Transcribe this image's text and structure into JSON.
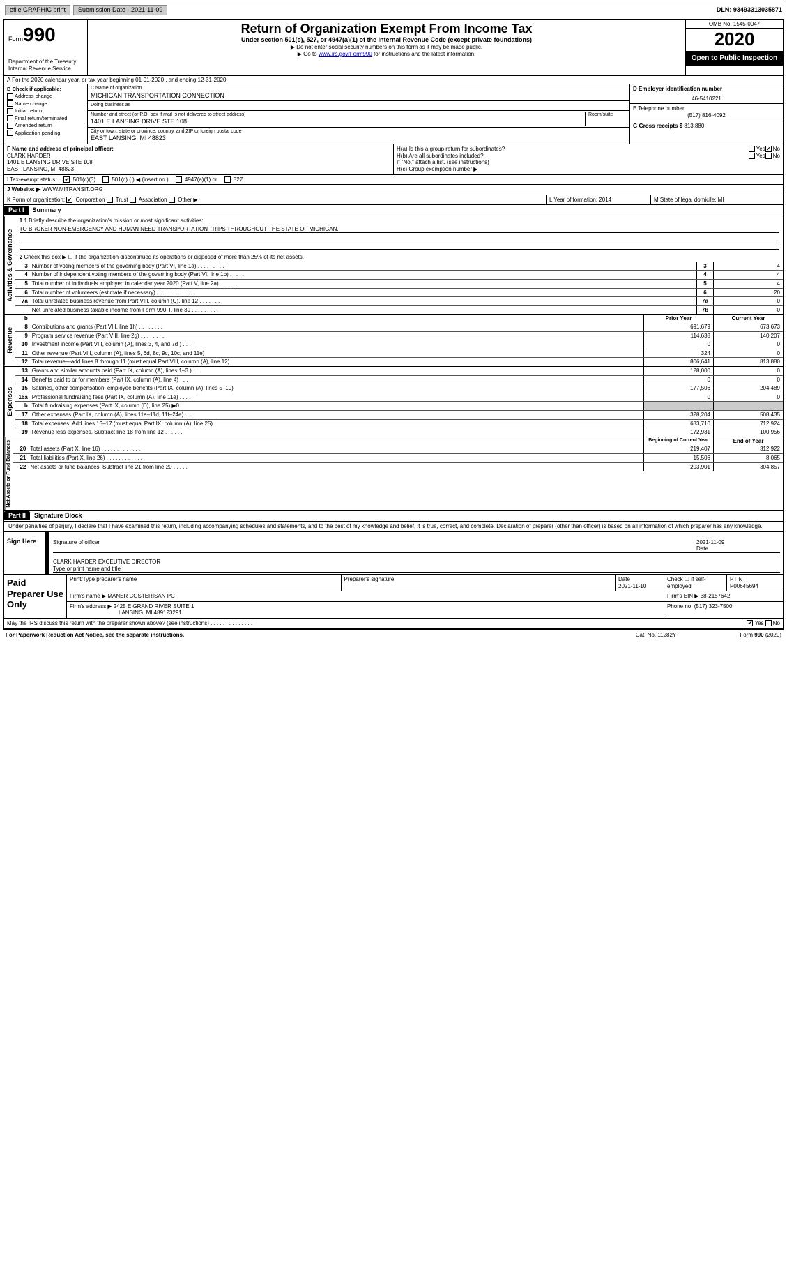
{
  "topbar": {
    "efile": "efile GRAPHIC print",
    "submission_label": "Submission Date - 2021-11-09",
    "dln": "DLN: 93493313035871"
  },
  "header": {
    "form_label": "Form",
    "form_num": "990",
    "dept": "Department of the Treasury\nInternal Revenue Service",
    "title": "Return of Organization Exempt From Income Tax",
    "subtitle": "Under section 501(c), 527, or 4947(a)(1) of the Internal Revenue Code (except private foundations)",
    "note1": "▶ Do not enter social security numbers on this form as it may be made public.",
    "note2_pre": "▶ Go to ",
    "note2_link": "www.irs.gov/Form990",
    "note2_post": " for instructions and the latest information.",
    "omb": "OMB No. 1545-0047",
    "year": "2020",
    "open": "Open to Public Inspection"
  },
  "rowA": "A For the 2020 calendar year, or tax year beginning 01-01-2020   , and ending 12-31-2020",
  "B": {
    "label": "B Check if applicable:",
    "opts": [
      "Address change",
      "Name change",
      "Initial return",
      "Final return/terminated",
      "Amended return",
      "Application pending"
    ]
  },
  "C": {
    "name_lbl": "C Name of organization",
    "name": "MICHIGAN TRANSPORTATION CONNECTION",
    "dba_lbl": "Doing business as",
    "dba": "",
    "street_lbl": "Number and street (or P.O. box if mail is not delivered to street address)",
    "room_lbl": "Room/suite",
    "street": "1401 E LANSING DRIVE STE 108",
    "city_lbl": "City or town, state or province, country, and ZIP or foreign postal code",
    "city": "EAST LANSING, MI  48823"
  },
  "D": {
    "lbl": "D Employer identification number",
    "val": "46-5410221"
  },
  "E": {
    "lbl": "E Telephone number",
    "val": "(517) 816-4092"
  },
  "G": {
    "lbl": "G Gross receipts $",
    "val": "813,880"
  },
  "F": {
    "lbl": "F  Name and address of principal officer:",
    "name": "CLARK HARDER",
    "addr1": "1401 E LANSING DRIVE STE 108",
    "addr2": "EAST LANSING, MI  48823"
  },
  "H": {
    "a": "H(a)  Is this a group return for subordinates?",
    "a_yes": "Yes",
    "a_no": "No",
    "b": "H(b)  Are all subordinates included?",
    "b_yes": "Yes",
    "b_no": "No",
    "b_note": "If \"No,\" attach a list. (see instructions)",
    "c": "H(c)  Group exemption number ▶"
  },
  "I": {
    "lbl": "I   Tax-exempt status:",
    "o1": "501(c)(3)",
    "o2": "501(c) (   ) ◀ (insert no.)",
    "o3": "4947(a)(1) or",
    "o4": "527"
  },
  "J": {
    "lbl": "J   Website: ▶",
    "val": "WWW.MITRANSIT.ORG"
  },
  "K": {
    "lbl": "K Form of organization:",
    "o1": "Corporation",
    "o2": "Trust",
    "o3": "Association",
    "o4": "Other ▶",
    "L": "L Year of formation: 2014",
    "M": "M State of legal domicile: MI"
  },
  "part1": {
    "hdr": "Part I",
    "title": "Summary"
  },
  "summary": {
    "l1_lbl": "1  Briefly describe the organization's mission or most significant activities:",
    "l1_val": "TO BROKER NON-EMERGENCY AND HUMAN NEED TRANSPORTATION TRIPS THROUGHOUT THE STATE OF MICHIGAN.",
    "l2": "Check this box ▶ ☐  if the organization discontinued its operations or disposed of more than 25% of its net assets.",
    "lines_gov": [
      {
        "n": "3",
        "t": "Number of voting members of the governing body (Part VI, line 1a)  .  .  .  .  .  .  .  .  .",
        "b": "3",
        "v": "4"
      },
      {
        "n": "4",
        "t": "Number of independent voting members of the governing body (Part VI, line 1b)  .  .  .  .  .",
        "b": "4",
        "v": "4"
      },
      {
        "n": "5",
        "t": "Total number of individuals employed in calendar year 2020 (Part V, line 2a)  .  .  .  .  .  .",
        "b": "5",
        "v": "4"
      },
      {
        "n": "6",
        "t": "Total number of volunteers (estimate if necessary)  .  .  .  .  .  .  .  .  .  .  .  .  .",
        "b": "6",
        "v": "20"
      },
      {
        "n": "7a",
        "t": "Total unrelated business revenue from Part VIII, column (C), line 12  .  .  .  .  .  .  .  .",
        "b": "7a",
        "v": "0"
      },
      {
        "n": "",
        "t": "Net unrelated business taxable income from Form 990-T, line 39  .  .  .  .  .  .  .  .  .",
        "b": "7b",
        "v": "0"
      }
    ],
    "hdr_prior": "Prior Year",
    "hdr_curr": "Current Year",
    "revenue": [
      {
        "n": "8",
        "t": "Contributions and grants (Part VIII, line 1h)  .  .  .  .  .  .  .  .",
        "p": "691,679",
        "c": "673,673"
      },
      {
        "n": "9",
        "t": "Program service revenue (Part VIII, line 2g)  .  .  .  .  .  .  .  .",
        "p": "114,638",
        "c": "140,207"
      },
      {
        "n": "10",
        "t": "Investment income (Part VIII, column (A), lines 3, 4, and 7d )  .  .  .",
        "p": "0",
        "c": "0"
      },
      {
        "n": "11",
        "t": "Other revenue (Part VIII, column (A), lines 5, 6d, 8c, 9c, 10c, and 11e)",
        "p": "324",
        "c": "0"
      },
      {
        "n": "12",
        "t": "Total revenue—add lines 8 through 11 (must equal Part VIII, column (A), line 12)",
        "p": "806,641",
        "c": "813,880"
      }
    ],
    "expenses": [
      {
        "n": "13",
        "t": "Grants and similar amounts paid (Part IX, column (A), lines 1–3 )  .  .  .",
        "p": "128,000",
        "c": "0"
      },
      {
        "n": "14",
        "t": "Benefits paid to or for members (Part IX, column (A), line 4)  .  .  .",
        "p": "0",
        "c": "0"
      },
      {
        "n": "15",
        "t": "Salaries, other compensation, employee benefits (Part IX, column (A), lines 5–10)",
        "p": "177,506",
        "c": "204,489"
      },
      {
        "n": "16a",
        "t": "Professional fundraising fees (Part IX, column (A), line 11e)  .  .  .  .",
        "p": "0",
        "c": "0"
      },
      {
        "n": "b",
        "t": "Total fundraising expenses (Part IX, column (D), line 25) ▶0",
        "p": "",
        "c": "",
        "gray": true
      },
      {
        "n": "17",
        "t": "Other expenses (Part IX, column (A), lines 11a–11d, 11f–24e)  .  .  .",
        "p": "328,204",
        "c": "508,435"
      },
      {
        "n": "18",
        "t": "Total expenses. Add lines 13–17 (must equal Part IX, column (A), line 25)",
        "p": "633,710",
        "c": "712,924"
      },
      {
        "n": "19",
        "t": "Revenue less expenses. Subtract line 18 from line 12  .  .  .  .  .  .",
        "p": "172,931",
        "c": "100,956"
      }
    ],
    "hdr_begin": "Beginning of Current Year",
    "hdr_end": "End of Year",
    "netassets": [
      {
        "n": "20",
        "t": "Total assets (Part X, line 16)  .  .  .  .  .  .  .  .  .  .  .  .  .",
        "p": "219,407",
        "c": "312,922"
      },
      {
        "n": "21",
        "t": "Total liabilities (Part X, line 26)  .  .  .  .  .  .  .  .  .  .  .  .",
        "p": "15,506",
        "c": "8,065"
      },
      {
        "n": "22",
        "t": "Net assets or fund balances. Subtract line 21 from line 20  .  .  .  .  .",
        "p": "203,901",
        "c": "304,857"
      }
    ]
  },
  "sidelabels": {
    "gov": "Activities & Governance",
    "rev": "Revenue",
    "exp": "Expenses",
    "net": "Net Assets or Fund Balances"
  },
  "part2": {
    "hdr": "Part II",
    "title": "Signature Block",
    "decl": "Under penalties of perjury, I declare that I have examined this return, including accompanying schedules and statements, and to the best of my knowledge and belief, it is true, correct, and complete. Declaration of preparer (other than officer) is based on all information of which preparer has any knowledge."
  },
  "sign": {
    "left": "Sign Here",
    "sig_lbl": "Signature of officer",
    "date": "2021-11-09",
    "date_lbl": "Date",
    "name": "CLARK HARDER  EXCEUTIVE DIRECTOR",
    "name_lbl": "Type or print name and title"
  },
  "prep": {
    "left": "Paid Preparer Use Only",
    "h1": "Print/Type preparer's name",
    "h2": "Preparer's signature",
    "h3": "Date",
    "h3v": "2021-11-10",
    "h4": "Check ☐ if self-employed",
    "h5": "PTIN",
    "h5v": "P00645694",
    "firm_lbl": "Firm's name    ▶",
    "firm": "MANER COSTERISAN PC",
    "ein_lbl": "Firm's EIN ▶",
    "ein": "38-2157642",
    "addr_lbl": "Firm's address ▶",
    "addr": "2425 E GRAND RIVER SUITE 1",
    "addr2": "LANSING, MI  489123291",
    "phone_lbl": "Phone no.",
    "phone": "(517) 323-7500"
  },
  "discuss": {
    "txt": "May the IRS discuss this return with the preparer shown above? (see instructions)  .  .  .  .  .  .  .  .  .  .  .  .  .  .",
    "yes": "Yes",
    "no": "No"
  },
  "footer": {
    "l": "For Paperwork Reduction Act Notice, see the separate instructions.",
    "m": "Cat. No. 11282Y",
    "r": "Form 990 (2020)"
  }
}
